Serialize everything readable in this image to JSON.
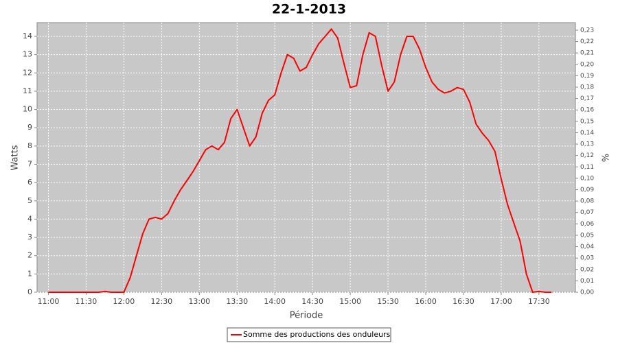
{
  "chart_data": {
    "type": "line",
    "title": "22-1-2013",
    "x_label": "Période",
    "y_label": "Watts",
    "y2_label": "%",
    "x": [
      "11:00",
      "11:05",
      "11:10",
      "11:15",
      "11:20",
      "11:25",
      "11:30",
      "11:35",
      "11:40",
      "11:45",
      "11:50",
      "11:55",
      "12:00",
      "12:05",
      "12:10",
      "12:15",
      "12:20",
      "12:25",
      "12:30",
      "12:35",
      "12:40",
      "12:45",
      "12:50",
      "12:55",
      "13:00",
      "13:05",
      "13:10",
      "13:15",
      "13:20",
      "13:25",
      "13:30",
      "13:35",
      "13:40",
      "13:45",
      "13:50",
      "13:55",
      "14:00",
      "14:05",
      "14:10",
      "14:15",
      "14:20",
      "14:25",
      "14:30",
      "14:35",
      "14:40",
      "14:45",
      "14:50",
      "14:55",
      "15:00",
      "15:05",
      "15:10",
      "15:15",
      "15:20",
      "15:25",
      "15:30",
      "15:35",
      "15:40",
      "15:45",
      "15:50",
      "15:55",
      "16:00",
      "16:05",
      "16:10",
      "16:15",
      "16:20",
      "16:25",
      "16:30",
      "16:35",
      "16:40",
      "16:45",
      "16:50",
      "16:55",
      "17:00",
      "17:05",
      "17:10",
      "17:15",
      "17:20",
      "17:25",
      "17:30",
      "17:35",
      "17:40"
    ],
    "series": [
      {
        "name": "Somme des productions des onduleurs",
        "color": "#ff0000",
        "values": [
          0,
          0,
          0,
          0,
          0,
          0,
          0,
          0,
          0,
          0.05,
          0,
          0,
          0,
          0.8,
          2.0,
          3.2,
          4.0,
          4.1,
          4.0,
          4.3,
          5.0,
          5.6,
          6.1,
          6.6,
          7.2,
          7.8,
          8.0,
          7.8,
          8.2,
          9.5,
          10.0,
          9.0,
          8.0,
          8.5,
          9.8,
          10.5,
          10.8,
          12.0,
          13.0,
          12.8,
          12.1,
          12.3,
          13.0,
          13.6,
          14.0,
          14.4,
          13.9,
          12.5,
          11.2,
          11.3,
          13.0,
          14.2,
          14.0,
          12.4,
          11.0,
          11.5,
          13.0,
          14.0,
          14.0,
          13.3,
          12.3,
          11.5,
          11.1,
          10.9,
          11.0,
          11.2,
          11.1,
          10.4,
          9.2,
          8.7,
          8.3,
          7.7,
          6.2,
          4.8,
          3.8,
          2.8,
          1.0,
          0,
          0.05,
          0,
          0
        ]
      }
    ],
    "xlim": [
      "10:51",
      "17:59"
    ],
    "xticks": [
      "11:00",
      "11:30",
      "12:00",
      "12:30",
      "13:00",
      "13:30",
      "14:00",
      "14:30",
      "15:00",
      "15:30",
      "16:00",
      "16:30",
      "17:00",
      "17:30"
    ],
    "ylim": [
      0,
      14.75
    ],
    "yticks": [
      0,
      1,
      2,
      3,
      4,
      5,
      6,
      7,
      8,
      9,
      10,
      11,
      12,
      13,
      14
    ],
    "y2lim": [
      0,
      0.2366
    ],
    "y2ticks": [
      {
        "value": 0,
        "label": "0,00"
      },
      {
        "value": 0.01,
        "label": "0,01"
      },
      {
        "value": 0.02,
        "label": "0,02"
      },
      {
        "value": 0.03,
        "label": "0,03"
      },
      {
        "value": 0.04,
        "label": "0,04"
      },
      {
        "value": 0.05,
        "label": "0,05"
      },
      {
        "value": 0.06,
        "label": "0,06"
      },
      {
        "value": 0.07,
        "label": "0,07"
      },
      {
        "value": 0.08,
        "label": "0,08"
      },
      {
        "value": 0.09,
        "label": "0,09"
      },
      {
        "value": 0.1,
        "label": "0,10"
      },
      {
        "value": 0.11,
        "label": "0,11"
      },
      {
        "value": 0.12,
        "label": "0,12"
      },
      {
        "value": 0.13,
        "label": "0,13"
      },
      {
        "value": 0.14,
        "label": "0,14"
      },
      {
        "value": 0.15,
        "label": "0,15"
      },
      {
        "value": 0.16,
        "label": "0,16"
      },
      {
        "value": 0.17,
        "label": "0,17"
      },
      {
        "value": 0.18,
        "label": "0,18"
      },
      {
        "value": 0.19,
        "label": "0,19"
      },
      {
        "value": 0.2,
        "label": "0,20"
      },
      {
        "value": 0.21,
        "label": "0,21"
      },
      {
        "value": 0.22,
        "label": "0,22"
      },
      {
        "value": 0.23,
        "label": "0,23"
      }
    ],
    "grid": true,
    "legend": "bottom"
  }
}
